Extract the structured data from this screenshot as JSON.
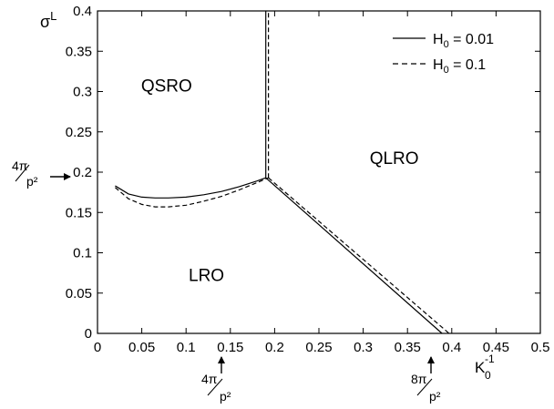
{
  "chart_data": {
    "type": "line",
    "title": "",
    "xlabel": {
      "base": "K",
      "sub": "0",
      "sup": "-1"
    },
    "ylabel": {
      "base": "σ",
      "sup": "L"
    },
    "xlim": [
      0,
      0.5
    ],
    "ylim": [
      0,
      0.4
    ],
    "x_ticks": [
      "0",
      "0.05",
      "0.1",
      "0.15",
      "0.2",
      "0.25",
      "0.3",
      "0.35",
      "0.4",
      "0.45",
      "0.5"
    ],
    "y_ticks": [
      "0",
      "0.05",
      "0.1",
      "0.15",
      "0.2",
      "0.25",
      "0.3",
      "0.35",
      "0.4"
    ],
    "grid": false,
    "legend_position": "top-right",
    "series": [
      {
        "name": "H0 = 0.01",
        "legend_base": "H",
        "legend_sub": "0",
        "legend_value": " = 0.01",
        "style": "solid",
        "segments": [
          {
            "x": [
              0.02,
              0.035,
              0.05,
              0.065,
              0.08,
              0.1,
              0.12,
              0.14,
              0.16,
              0.18,
              0.19
            ],
            "y": [
              0.183,
              0.173,
              0.169,
              0.168,
              0.168,
              0.169,
              0.172,
              0.176,
              0.182,
              0.189,
              0.193
            ]
          },
          {
            "x": [
              0.19,
              0.19
            ],
            "y": [
              0.193,
              0.4
            ]
          },
          {
            "x": [
              0.19,
              0.389
            ],
            "y": [
              0.193,
              0.0
            ]
          }
        ]
      },
      {
        "name": "H0 = 0.1",
        "legend_base": "H",
        "legend_sub": "0",
        "legend_value": " = 0.1",
        "style": "dashed",
        "segments": [
          {
            "x": [
              0.02,
              0.035,
              0.05,
              0.065,
              0.08,
              0.1,
              0.12,
              0.14,
              0.16,
              0.18,
              0.193
            ],
            "y": [
              0.181,
              0.167,
              0.16,
              0.157,
              0.157,
              0.159,
              0.164,
              0.17,
              0.178,
              0.187,
              0.193
            ]
          },
          {
            "x": [
              0.193,
              0.193
            ],
            "y": [
              0.193,
              0.4
            ]
          },
          {
            "x": [
              0.193,
              0.397
            ],
            "y": [
              0.193,
              0.0
            ]
          }
        ]
      }
    ],
    "regions": [
      {
        "label": "QSRO",
        "x": 0.078,
        "y": 0.3
      },
      {
        "label": "QLRO",
        "x": 0.335,
        "y": 0.21
      },
      {
        "label": "LRO",
        "x": 0.123,
        "y": 0.065
      }
    ],
    "annotations": [
      {
        "id": "y-frac",
        "numerator": "4π",
        "denominator": "p²",
        "axis": "y",
        "value": 0.196
      },
      {
        "id": "x-frac-1",
        "numerator": "4π",
        "denominator": "p²",
        "axis": "x",
        "value": 0.196
      },
      {
        "id": "x-frac-2",
        "numerator": "8π",
        "denominator": "p²",
        "axis": "x",
        "value": 0.392
      }
    ]
  }
}
